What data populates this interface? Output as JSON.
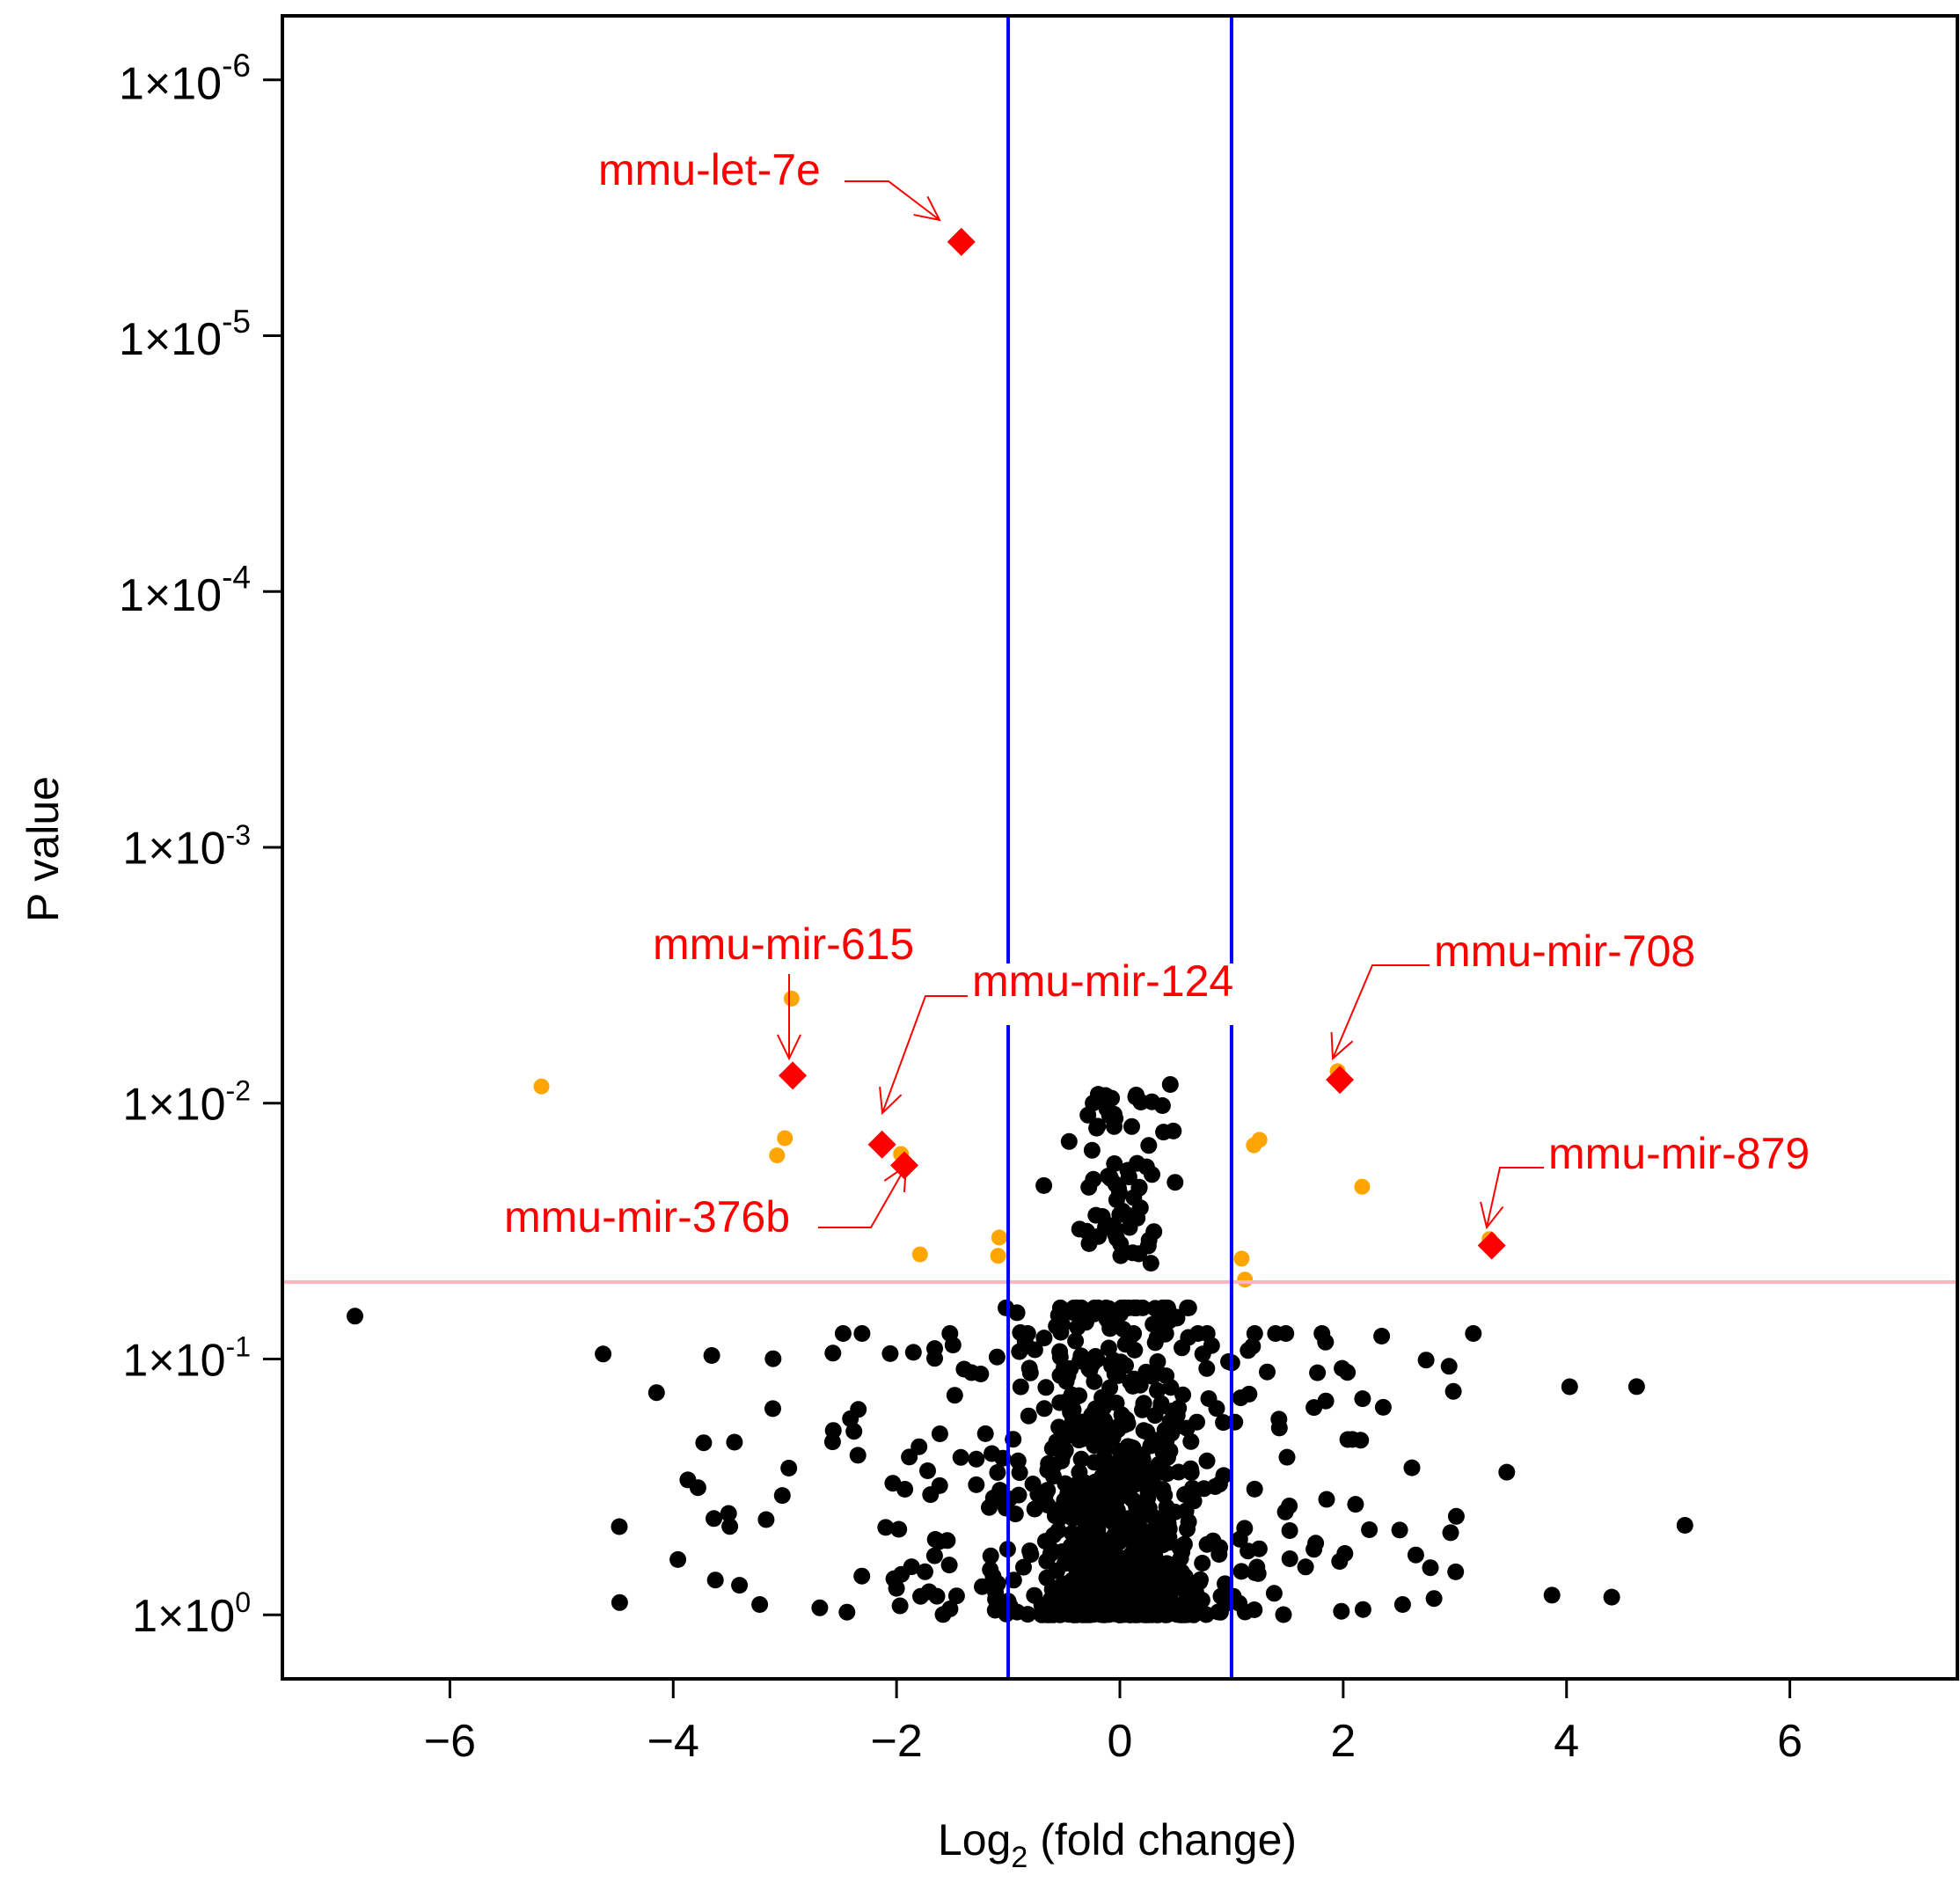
{
  "chart_data": {
    "type": "scatter",
    "title": "",
    "xlabel": {
      "main": "Log",
      "sub": "2",
      "rest": " (fold change)"
    },
    "ylabel": "P value",
    "y_scale": "log-reversed",
    "xlim": [
      -7.5,
      7.5
    ],
    "ylim_log10": [
      0.25,
      -6.25
    ],
    "x_ticks": [
      {
        "value": -6,
        "label": "−6"
      },
      {
        "value": -4,
        "label": "−4"
      },
      {
        "value": -2,
        "label": "−2"
      },
      {
        "value": 0,
        "label": "0"
      },
      {
        "value": 2,
        "label": "2"
      },
      {
        "value": 4,
        "label": "4"
      },
      {
        "value": 6,
        "label": "6"
      }
    ],
    "y_ticks": [
      {
        "p": 1e-06,
        "base": "1×10",
        "exp": "-6",
        "big": true
      },
      {
        "p": 1e-05,
        "base": "1×10",
        "exp": "-5",
        "big": true
      },
      {
        "p": 0.0001,
        "base": "1×10",
        "exp": "-4",
        "big": true
      },
      {
        "p": 0.001,
        "base": "1×10",
        "exp": "-3",
        "big": false
      },
      {
        "p": 0.01,
        "base": "1×10",
        "exp": "-2",
        "big": false
      },
      {
        "p": 0.1,
        "base": "1×10",
        "exp": "-1",
        "big": false
      },
      {
        "p": 1,
        "base": "1×10",
        "exp": "0",
        "big": false
      }
    ],
    "thresholds": {
      "fold_change_x": [
        -1,
        1
      ],
      "p_value": 0.05
    },
    "colors": {
      "nonsignificant": "#000000",
      "significant": "#ffa500",
      "highlighted": "#ff0000",
      "fold_lines": "#0000ff",
      "p_line": "#ffb6c1"
    },
    "highlighted": [
      {
        "name": "mmu-let-7e",
        "x": -1.42,
        "p": 4.3e-06
      },
      {
        "name": "mmu-mir-615",
        "x": -2.93,
        "p": 0.0078
      },
      {
        "name": "mmu-mir-124",
        "x": -2.13,
        "p": 0.0145
      },
      {
        "name": "mmu-mir-376b",
        "x": -1.93,
        "p": 0.0175
      },
      {
        "name": "mmu-mir-708",
        "x": 1.97,
        "p": 0.0081
      },
      {
        "name": "mmu-mir-879",
        "x": 3.33,
        "p": 0.036
      }
    ],
    "significant_points": [
      {
        "x": -2.94,
        "p": 0.0039
      },
      {
        "x": -5.18,
        "p": 0.0086
      },
      {
        "x": -3.0,
        "p": 0.0137
      },
      {
        "x": -3.07,
        "p": 0.016
      },
      {
        "x": -1.96,
        "p": 0.0158
      },
      {
        "x": -1.79,
        "p": 0.039
      },
      {
        "x": -1.08,
        "p": 0.0335
      },
      {
        "x": -1.09,
        "p": 0.0395
      },
      {
        "x": 1.2,
        "p": 0.0146
      },
      {
        "x": 1.25,
        "p": 0.0139
      },
      {
        "x": 2.17,
        "p": 0.0212
      },
      {
        "x": 1.09,
        "p": 0.0405
      },
      {
        "x": 1.12,
        "p": 0.0489
      },
      {
        "x": 1.95,
        "p": 0.0075
      },
      {
        "x": 3.31,
        "p": 0.034
      }
    ],
    "random_seed": 20240611
  }
}
